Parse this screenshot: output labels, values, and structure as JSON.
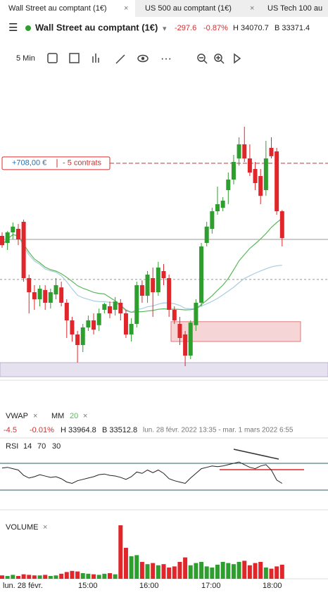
{
  "tabs": [
    "Wall Street au comptant (1€)",
    "US 500 au comptant (1€)",
    "US Tech 100 au"
  ],
  "instrument": {
    "name": "Wall Street au comptant (1€)",
    "change": "-297.6",
    "change_pct": "-0.87%",
    "high": "H 34070.7",
    "low": "B 33371.4"
  },
  "toolbar": {
    "interval": "5 Min"
  },
  "position": {
    "pnl": "+708,00 €",
    "contracts": "- 5 contrats",
    "level": 33996
  },
  "indicators": {
    "vwap": "VWAP",
    "ma": "MM",
    "ma_period": 20,
    "value": "-4.5",
    "value_pct": "-0.01%",
    "high": "H 33964.8",
    "low": "B 33512.8",
    "range": "lun. 28 févr. 2022 13:35 - mar. 1 mars 2022 6:55"
  },
  "chart_data": {
    "type": "candlestick",
    "up_color": "#2e9e2e",
    "down_color": "#e0262b",
    "open": [
      33769,
      33747,
      33780,
      33791,
      33813,
      33637,
      33593,
      33571,
      33600,
      33560,
      33586,
      33608,
      33560,
      33505,
      33461,
      33428,
      33483,
      33505,
      33490,
      33538,
      33549,
      33538,
      33560,
      33527,
      33461,
      33494,
      33615,
      33582,
      33637,
      33593,
      33659,
      33637,
      33538,
      33494,
      33461,
      33395,
      33490,
      33560,
      33747,
      33791,
      33846,
      33857,
      33912,
      33945,
      34011,
      34055,
      34011,
      33978,
      33956,
      33912,
      34044,
      34033,
      33846
    ],
    "high": [
      33780,
      33784,
      33811,
      33806,
      33820,
      33648,
      33615,
      33615,
      33615,
      33604,
      33637,
      33626,
      33571,
      33516,
      33472,
      33494,
      33520,
      33527,
      33542,
      33560,
      33564,
      33578,
      33571,
      33538,
      33512,
      33626,
      33630,
      33659,
      33670,
      33688,
      33681,
      33648,
      33549,
      33516,
      33472,
      33505,
      33571,
      33747,
      33813,
      33857,
      33923,
      33890,
      33967,
      34022,
      34077,
      34110,
      34055,
      34000,
      33978,
      34066,
      34077,
      34044,
      33850
    ],
    "low": [
      33732,
      33725,
      33758,
      33740,
      33626,
      33527,
      33538,
      33549,
      33538,
      33542,
      33571,
      33549,
      33450,
      33439,
      33373,
      33406,
      33472,
      33461,
      33472,
      33527,
      33512,
      33520,
      33505,
      33450,
      33439,
      33483,
      33560,
      33560,
      33516,
      33582,
      33615,
      33516,
      33494,
      33428,
      33362,
      33384,
      33472,
      33549,
      33736,
      33776,
      33835,
      33846,
      33868,
      33930,
      33989,
      34000,
      33956,
      33912,
      33868,
      33894,
      34011,
      33835,
      33736
    ],
    "close": [
      33740,
      33780,
      33798,
      33758,
      33637,
      33593,
      33571,
      33604,
      33560,
      33593,
      33615,
      33560,
      33505,
      33461,
      33428,
      33483,
      33505,
      33476,
      33527,
      33556,
      33527,
      33564,
      33527,
      33461,
      33494,
      33615,
      33582,
      33648,
      33593,
      33670,
      33637,
      33538,
      33505,
      33450,
      33395,
      33498,
      33560,
      33736,
      33798,
      33846,
      33868,
      33879,
      33945,
      34000,
      34055,
      34011,
      33967,
      33934,
      33894,
      34011,
      34018,
      33846,
      33762
    ],
    "ylim": [
      33340,
      34121
    ],
    "levels": {
      "current": 33758,
      "reference": 33633,
      "zone": [
        33439,
        33501
      ],
      "support_band": [
        33329,
        33373
      ]
    },
    "ma_color": "#5cb85c",
    "vwap_color": "#a9cde0",
    "x_labels": [
      "lun. 28 févr.",
      "15:00",
      "16:00",
      "17:00",
      "18:00"
    ],
    "volume": {
      "title": "VOLUME",
      "values": [
        6,
        5,
        7,
        5,
        8,
        7,
        6,
        6,
        7,
        5,
        6,
        9,
        12,
        14,
        13,
        10,
        9,
        8,
        7,
        9,
        10,
        8,
        95,
        55,
        40,
        42,
        30,
        26,
        28,
        24,
        26,
        20,
        22,
        30,
        38,
        24,
        28,
        30,
        22,
        20,
        25,
        30,
        28,
        26,
        30,
        32,
        24,
        28,
        30,
        20,
        18,
        22,
        25
      ],
      "ylim": [
        0,
        100
      ]
    },
    "rsi": {
      "title": "RSI",
      "period": 14,
      "upper": 70,
      "lower": 30,
      "ylim": [
        25,
        75
      ],
      "values": [
        63,
        64,
        62,
        60,
        52,
        48,
        50,
        53,
        51,
        49,
        50,
        47,
        42,
        40,
        44,
        46,
        48,
        50,
        53,
        54,
        52,
        51,
        49,
        46,
        50,
        57,
        55,
        60,
        56,
        60,
        55,
        47,
        44,
        42,
        40,
        48,
        55,
        62,
        64,
        66,
        65,
        66,
        68,
        70,
        72,
        68,
        64,
        62,
        66,
        68,
        60,
        45,
        40
      ]
    }
  }
}
